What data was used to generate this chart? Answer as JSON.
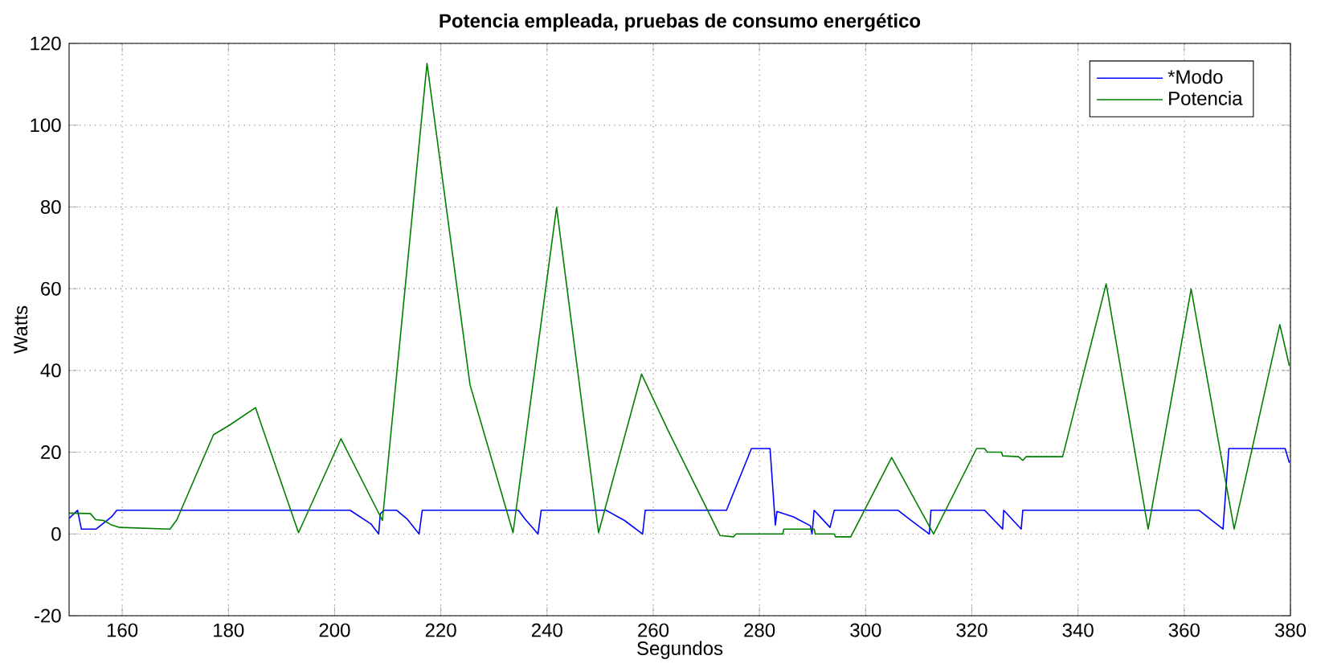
{
  "chart_data": {
    "type": "line",
    "title": "Potencia empleada, pruebas de consumo energético",
    "xlabel": "Segundos",
    "ylabel": "Watts",
    "xlim": [
      150,
      380
    ],
    "xticks": [
      160,
      180,
      200,
      220,
      240,
      260,
      280,
      300,
      320,
      340,
      360,
      380
    ],
    "ylim": [
      -20,
      120
    ],
    "yticks": [
      -20,
      0,
      20,
      40,
      60,
      80,
      100,
      120
    ],
    "grid": true,
    "legend": "top right",
    "marker": "none",
    "line_style": "solid",
    "series": [
      {
        "name": "*Modo",
        "color": "#0000ff",
        "x": [
          150,
          151.6,
          152.3,
          155.1,
          158,
          159,
          202.9,
          206.8,
          208.3,
          208.6,
          209.3,
          211.7,
          213.7,
          215.9,
          216.5,
          234.6,
          235.9,
          238.3,
          238.9,
          251.1,
          254.6,
          258,
          258.5,
          273.8,
          278.5,
          282,
          283,
          283.3,
          286.4,
          289.6,
          289.9,
          290.3,
          293.3,
          294.1,
          306.1,
          309,
          312,
          312.3,
          322.4,
          325.8,
          326,
          329.3,
          329.6,
          362.8,
          367.3,
          368.4,
          379,
          379.8
        ],
        "values": [
          3.8,
          5.8,
          1.2,
          1.2,
          4.2,
          5.8,
          5.8,
          2.5,
          0,
          4.9,
          5.8,
          5.8,
          3.6,
          0,
          5.8,
          5.8,
          3.6,
          0,
          5.8,
          5.8,
          3.3,
          0,
          5.8,
          5.8,
          20.9,
          20.9,
          2.2,
          5.5,
          4.2,
          2,
          0,
          5.8,
          1.6,
          5.8,
          5.8,
          2.9,
          0,
          5.8,
          5.8,
          1.2,
          5.8,
          1.2,
          5.8,
          5.8,
          1.2,
          20.9,
          20.9,
          17.4
        ]
      },
      {
        "name": "Potencia",
        "color": "#008000",
        "x": [
          150,
          154,
          155,
          156.5,
          158,
          159.5,
          169,
          170.3,
          177.2,
          180.2,
          185.1,
          193.2,
          201.2,
          209,
          217.4,
          225.5,
          233.6,
          241.8,
          249.7,
          257.8,
          262.8,
          272.6,
          275.1,
          275.6,
          284.4,
          284.6,
          290.3,
          290.5,
          294.1,
          294.3,
          297.2,
          304.9,
          312.8,
          320.9,
          322.4,
          322.9,
          325.6,
          325.8,
          328.8,
          329.6,
          330.2,
          337.1,
          345.3,
          353.2,
          361.3,
          369.4,
          378,
          379.8
        ],
        "values": [
          5.1,
          5,
          3.5,
          3.3,
          2.2,
          1.6,
          1.2,
          3.5,
          24.3,
          26.6,
          30.9,
          0.3,
          23.3,
          3.3,
          115.1,
          36.5,
          0.3,
          79.9,
          0.3,
          39.1,
          25.3,
          -0.4,
          -0.7,
          0,
          0,
          1.2,
          1.2,
          0,
          0,
          -0.7,
          -0.7,
          18.7,
          0,
          20.9,
          20.9,
          20,
          20,
          19.1,
          18.9,
          18,
          18.9,
          18.9,
          61.2,
          1.2,
          59.9,
          1.2,
          51.2,
          41.1
        ]
      }
    ]
  }
}
